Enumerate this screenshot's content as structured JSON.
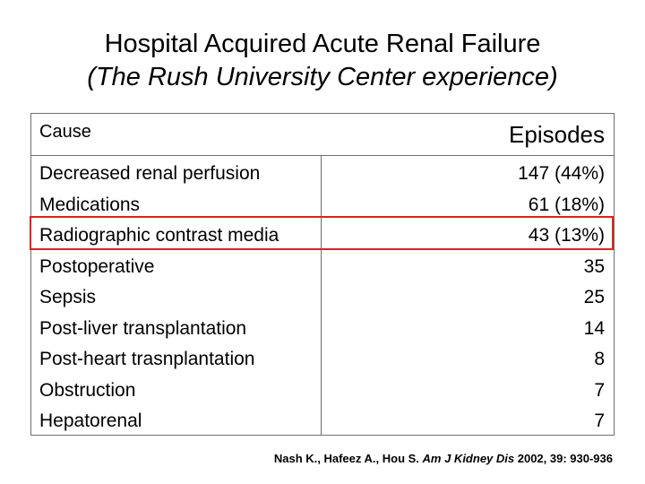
{
  "title": "Hospital Acquired Acute Renal Failure",
  "subtitle": "(The Rush University Center experience)",
  "table": {
    "headers": {
      "cause": "Cause",
      "episodes": "Episodes"
    },
    "rows": [
      {
        "cause": "Decreased renal perfusion",
        "episodes": "147 (44%)"
      },
      {
        "cause": "Medications",
        "episodes": "61 (18%)"
      },
      {
        "cause": "Radiographic contrast media",
        "episodes": "43 (13%)"
      },
      {
        "cause": "Postoperative",
        "episodes": "35"
      },
      {
        "cause": "Sepsis",
        "episodes": "25"
      },
      {
        "cause": "Post-liver transplantation",
        "episodes": "14"
      },
      {
        "cause": "Post-heart trasnplantation",
        "episodes": "8"
      },
      {
        "cause": "Obstruction",
        "episodes": "7"
      },
      {
        "cause": "Hepatorenal",
        "episodes": "7"
      }
    ],
    "highlight_color": "#e02020"
  },
  "citation": {
    "authors": "Nash K.,  Hafeez A., Hou S. ",
    "journal": "Am J Kidney Dis",
    "details": " 2002, 39: 930-936"
  }
}
